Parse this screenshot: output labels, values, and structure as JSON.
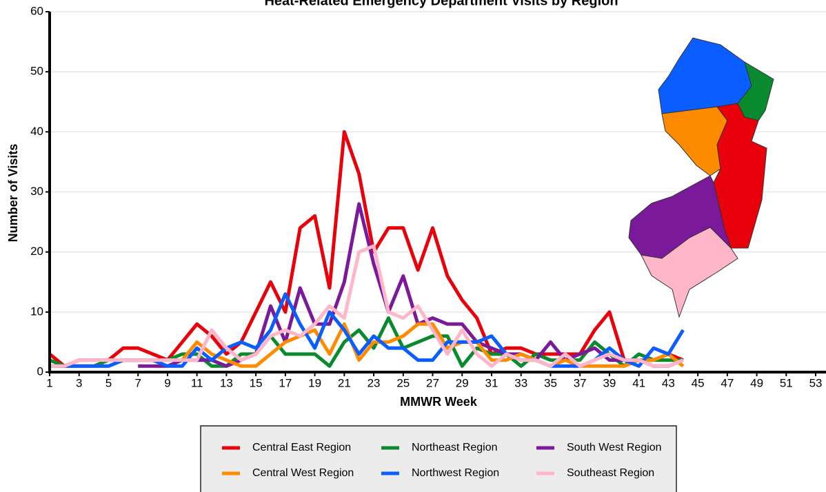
{
  "chart_data": {
    "type": "line",
    "title": "Heat-Related Emergency Department Visits by Region",
    "x_label": "MMWR Week",
    "y_label": "Number of Visits",
    "x": [
      1,
      2,
      3,
      4,
      5,
      6,
      7,
      8,
      9,
      10,
      11,
      12,
      13,
      14,
      15,
      16,
      17,
      18,
      19,
      20,
      21,
      22,
      23,
      24,
      25,
      26,
      27,
      28,
      29,
      30,
      31,
      32,
      33,
      34,
      35,
      36,
      37,
      38,
      39,
      40,
      41,
      42,
      43,
      44
    ],
    "series": [
      {
        "name": "Central East Region",
        "color": "#e8000b",
        "values": [
          3,
          1,
          2,
          2,
          2,
          4,
          4,
          3,
          2,
          5,
          8,
          6,
          3,
          5,
          10,
          15,
          10,
          24,
          26,
          14,
          40,
          33,
          20,
          24,
          24,
          17,
          24,
          16,
          12,
          9,
          3,
          4,
          4,
          3,
          3,
          3,
          3,
          7,
          10,
          2,
          2,
          2,
          3,
          2
        ]
      },
      {
        "name": "Northeast Region",
        "color": "#0a8a2e",
        "values": [
          2,
          1,
          1,
          1,
          2,
          2,
          2,
          2,
          2,
          3,
          3,
          1,
          1,
          3,
          3,
          6,
          3,
          3,
          3,
          1,
          5,
          7,
          4,
          9,
          4,
          5,
          6,
          6,
          1,
          4,
          3,
          3,
          1,
          3,
          2,
          2,
          2,
          5,
          3,
          1,
          3,
          2,
          2,
          2
        ]
      },
      {
        "name": "South West Region",
        "color": "#7a1a9a",
        "values": [
          null,
          null,
          null,
          null,
          null,
          null,
          1,
          1,
          1,
          2,
          2,
          2,
          1,
          2,
          3,
          11,
          5,
          14,
          8,
          8,
          15,
          28,
          18,
          10,
          16,
          8,
          9,
          8,
          8,
          5,
          4,
          3,
          3,
          2,
          5,
          2,
          3,
          4,
          2,
          2,
          2,
          1,
          1,
          2
        ]
      },
      {
        "name": "Central West Region",
        "color": "#ff8c00",
        "values": [
          1,
          1,
          1,
          1,
          1,
          2,
          2,
          2,
          2,
          2,
          5,
          3,
          2,
          1,
          1,
          3,
          5,
          6,
          7,
          3,
          8,
          2,
          5,
          5,
          6,
          8,
          8,
          4,
          5,
          5,
          2,
          2,
          3,
          2,
          1,
          2,
          1,
          1,
          1,
          1,
          2,
          2,
          3,
          1
        ]
      },
      {
        "name": "Northwest Region",
        "color": "#0a5eff",
        "values": [
          1,
          1,
          1,
          1,
          1,
          2,
          2,
          2,
          1,
          1,
          4,
          2,
          4,
          5,
          4,
          7,
          13,
          8,
          4,
          10,
          7,
          3,
          6,
          4,
          4,
          2,
          2,
          5,
          5,
          5,
          6,
          3,
          2,
          2,
          1,
          1,
          1,
          2,
          4,
          2,
          1,
          4,
          3,
          7
        ]
      },
      {
        "name": "Southeast Region",
        "color": "#ffb6c8",
        "values": [
          1,
          1,
          2,
          2,
          2,
          2,
          2,
          2,
          2,
          2,
          2,
          7,
          4,
          2,
          3,
          6,
          7,
          6,
          8,
          11,
          9,
          20,
          21,
          10,
          9,
          11,
          7,
          3,
          7,
          3,
          1,
          3,
          2,
          2,
          1,
          3,
          1,
          2,
          3,
          2,
          2,
          1,
          1,
          2
        ]
      }
    ],
    "xlim": [
      1,
      53.7
    ],
    "ylim": [
      0,
      60
    ],
    "xticks": [
      1,
      3,
      5,
      7,
      9,
      11,
      13,
      15,
      17,
      19,
      21,
      23,
      25,
      27,
      29,
      31,
      33,
      35,
      37,
      39,
      41,
      43,
      45,
      47,
      49,
      51,
      53
    ],
    "yticks": [
      0,
      10,
      20,
      30,
      40,
      50,
      60
    ],
    "grid": true
  }
}
